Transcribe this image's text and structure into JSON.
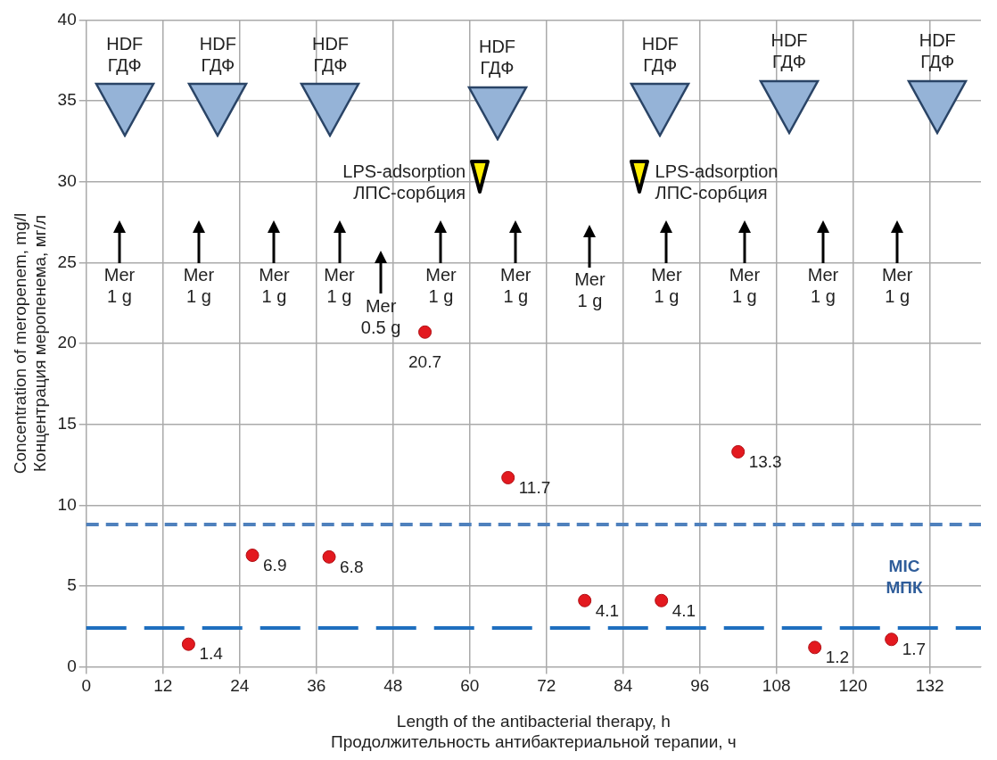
{
  "chart_data": {
    "type": "scatter",
    "xlabel": "Length of the antibacterial therapy, h\nПродолжительность антибактериальной терапии, ч",
    "ylabel": "Concentration of meropenem, mg/l\nКонцентрация меропенема, мг/л",
    "x": [
      16,
      26,
      38,
      53,
      66,
      78,
      90,
      102,
      114,
      126
    ],
    "series": [
      {
        "color": "#e3191f",
        "values": [
          1.4,
          6.9,
          6.8,
          20.7,
          11.7,
          4.1,
          4.1,
          13.3,
          1.2,
          1.7
        ]
      }
    ],
    "data_labels": true,
    "marker": "circle",
    "xlim": [
      0,
      140
    ],
    "xticks": [
      0,
      12,
      24,
      36,
      48,
      60,
      72,
      84,
      96,
      108,
      120,
      132
    ],
    "ylim": [
      0,
      40
    ],
    "yticks": [
      0,
      5,
      10,
      15,
      20,
      25,
      30,
      35,
      40
    ],
    "grid": true,
    "legend": false,
    "ref_lines": [
      {
        "axis": "y",
        "value": 8.8,
        "color": "#4f81bd",
        "line_style": "dashed"
      },
      {
        "axis": "y",
        "value": 2.4,
        "color": "#1f6fbf",
        "line_style": "dashed"
      }
    ],
    "annotations": [
      "HDF\nГДФ",
      "HDF\nГДФ",
      "HDF\nГДФ",
      "HDF\nГДФ",
      "HDF\nГДФ",
      "HDF\nГДФ",
      "HDF\nГДФ",
      "LPS-adsorption\nЛПС-сорбция",
      "LPS-adsorption\nЛПС-сорбция",
      "Mer\n1 g",
      "Mer\n1 g",
      "Mer\n1 g",
      "Mer\n1 g",
      "Mer\n0.5 g",
      "Mer\n1 g",
      "Mer\n1 g",
      "Mer\n1 g",
      "Mer\n1 g",
      "Mer\n1 g",
      "Mer\n1 g",
      "Mer\n1 g",
      "MIC\nМПК"
    ]
  }
}
